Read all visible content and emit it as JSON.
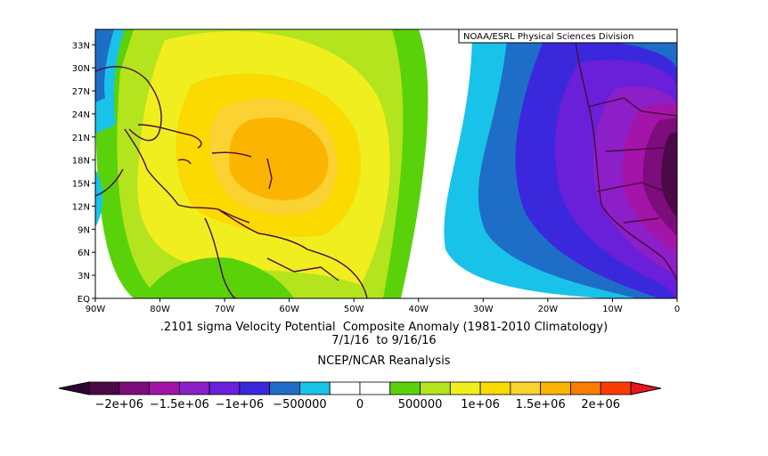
{
  "credit": "NOAA/ESRL Physical Sciences Division",
  "title_line1": ".2101 sigma Velocity Potential  Composite Anomaly (1981-2010 Climatology)",
  "title_line2": "7/1/16  to 9/16/16",
  "title_line3": "NCEP/NCAR Reanalysis",
  "lat_ticks": [
    "33N",
    "30N",
    "27N",
    "24N",
    "21N",
    "18N",
    "15N",
    "12N",
    "9N",
    "6N",
    "3N",
    "EQ"
  ],
  "lon_ticks": [
    "90W",
    "80W",
    "70W",
    "60W",
    "50W",
    "40W",
    "30W",
    "20W",
    "10W",
    "0"
  ],
  "colorbar": {
    "colors": [
      "#4a0a48",
      "#7d0c7d",
      "#a514a9",
      "#8c1fc8",
      "#6a1fd9",
      "#3c28dc",
      "#1e6ec8",
      "#19c2e8",
      "#ffffff",
      "#ffffff",
      "#5ad20a",
      "#b4e41e",
      "#f0ee1e",
      "#fada00",
      "#fad232",
      "#fbb400",
      "#fb7c00",
      "#fb3c00"
    ],
    "labels": [
      "−2e+06",
      "−1.5e+06",
      "−1e+06",
      "−500000",
      "0",
      "500000",
      "1e+06",
      "1.5e+06",
      "2e+06"
    ]
  },
  "map_extent": {
    "lon_min": -90,
    "lon_max": 0,
    "lat_min": 0,
    "lat_max": 35
  }
}
